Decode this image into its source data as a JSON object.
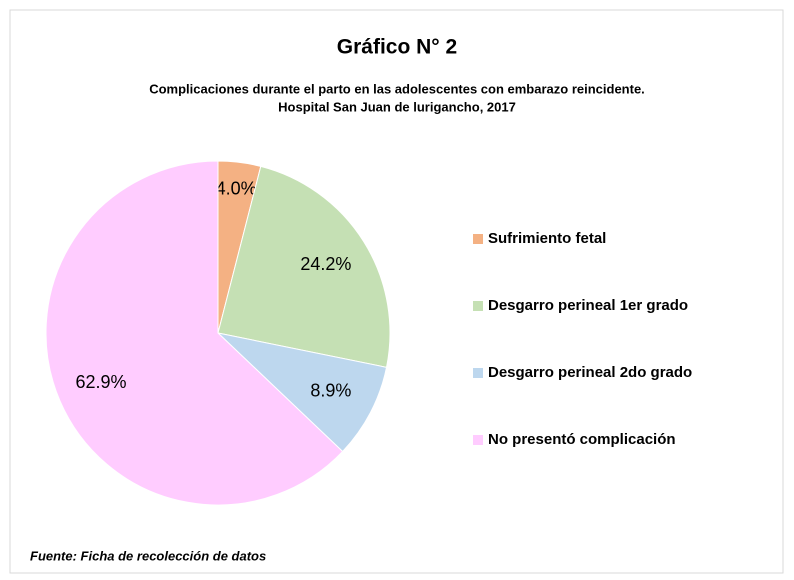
{
  "chart_data": {
    "type": "pie",
    "title": "Gráfico N° 2",
    "subtitle": [
      "Complicaciones durante el parto en las adolescentes con embarazo reincidente.",
      "Hospital San Juan de lurigancho, 2017"
    ],
    "categories": [
      "Sufrimiento fetal",
      "Desgarro perineal 1er grado",
      "Desgarro perineal 2do grado",
      "No presentó complicación"
    ],
    "values": [
      4.0,
      24.2,
      8.9,
      62.9
    ],
    "value_labels": [
      "4.0%",
      "24.2%",
      "8.9%",
      "62.9%"
    ],
    "colors": [
      "#f4b183",
      "#c5e0b4",
      "#bdd7ee",
      "#ffccff"
    ],
    "legend": "right",
    "source": "Fuente: Ficha de recolección de datos"
  }
}
